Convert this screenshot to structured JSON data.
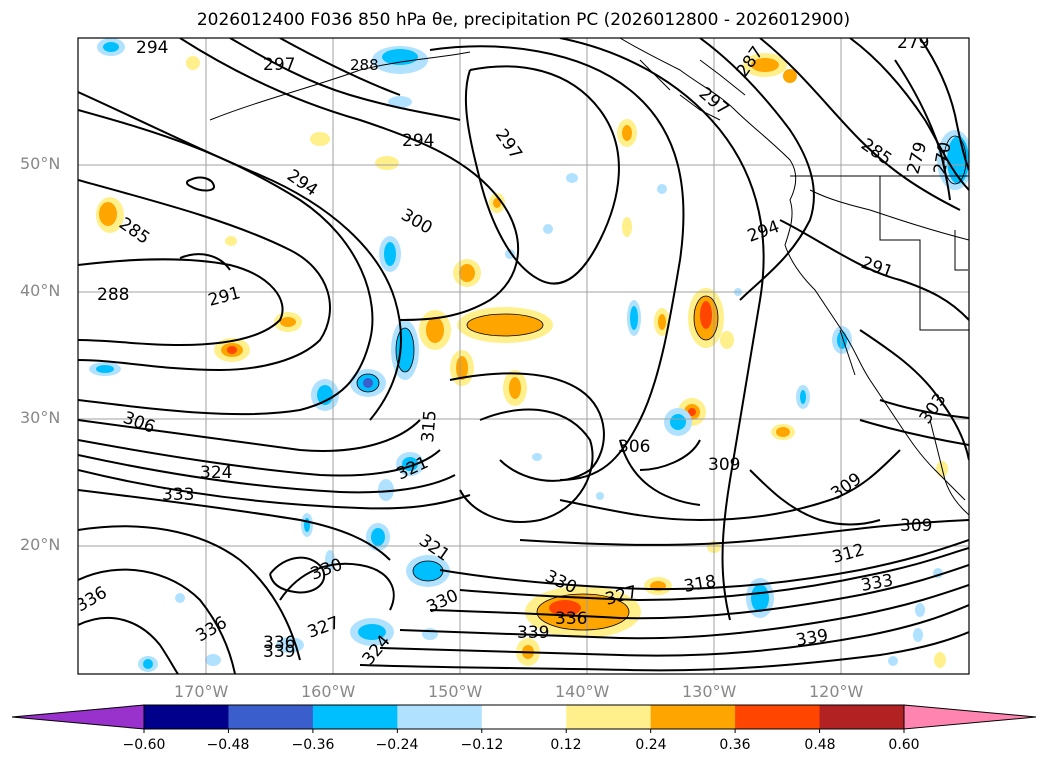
{
  "title": {
    "text": "2026012400 F036 850 hPa θe, precipitation PC (2026012800 - 2026012900)"
  },
  "axes": {
    "lon_ticks": [
      "170°W",
      "160°W",
      "150°W",
      "140°W",
      "130°W",
      "120°W"
    ],
    "lat_ticks": [
      "50°N",
      "40°N",
      "30°N",
      "20°N"
    ]
  },
  "contour_labels": [
    "294",
    "297",
    "297",
    "288",
    "279",
    "287",
    "294",
    "297",
    "285",
    "279",
    "270",
    "294",
    "285",
    "300",
    "294",
    "291",
    "288",
    "291",
    "306",
    "315",
    "306",
    "309",
    "303",
    "324",
    "321",
    "333",
    "309",
    "309",
    "321",
    "330",
    "312",
    "330",
    "330",
    "318",
    "327",
    "336",
    "336",
    "333",
    "336",
    "339",
    "339",
    "327",
    "336",
    "339",
    "324"
  ],
  "colorbar": {
    "ticks": [
      "−0.60",
      "−0.48",
      "−0.36",
      "−0.24",
      "−0.12",
      "0.12",
      "0.24",
      "0.36",
      "0.48",
      "0.60"
    ],
    "colors": [
      "#9932cc",
      "#00008b",
      "#3a5fcd",
      "#00bfff",
      "#b0e2ff",
      "#ffffff",
      "#fff08c",
      "#ffa500",
      "#ff4500",
      "#b22222",
      "#ff85b0"
    ]
  }
}
